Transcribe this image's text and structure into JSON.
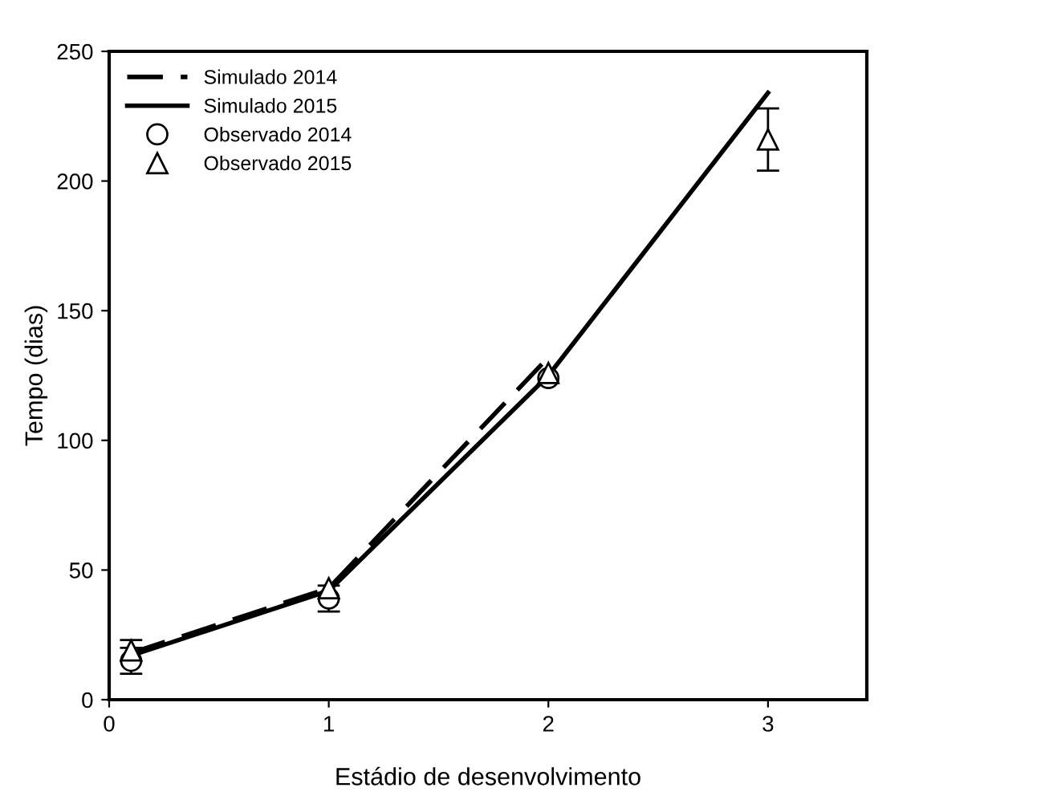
{
  "chart_data": {
    "type": "line",
    "xlabel": "Estádio de desenvolvimento",
    "ylabel": "Tempo (dias)",
    "xlim": [
      0,
      3.45
    ],
    "xticks": [
      0,
      1,
      2,
      3
    ],
    "ylim": [
      0,
      250
    ],
    "yticks": [
      0,
      50,
      100,
      150,
      200,
      250
    ],
    "grid": false,
    "legend": "top left",
    "series": [
      {
        "name": "Simulado 2014",
        "line_style": "dashed",
        "marker": "none",
        "color": "#000000",
        "x": [
          0.1,
          1,
          2
        ],
        "values": [
          18,
          43,
          132
        ]
      },
      {
        "name": "Simulado 2015",
        "line_style": "solid",
        "marker": "none",
        "color": "#000000",
        "x": [
          0.1,
          1,
          2,
          3
        ],
        "values": [
          17,
          42,
          125,
          234
        ]
      },
      {
        "name": "Observado 2014",
        "type": "scatter",
        "marker": "circle",
        "color": "#000000",
        "x": [
          0.1,
          1,
          2
        ],
        "values": [
          15,
          39,
          124
        ],
        "errors": [
          5,
          5,
          null
        ]
      },
      {
        "name": "Observado 2015",
        "type": "scatter",
        "marker": "triangle",
        "color": "#000000",
        "x": [
          0.1,
          1,
          2,
          3
        ],
        "values": [
          19,
          43,
          126,
          216
        ],
        "errors": [
          4,
          null,
          null,
          12
        ]
      }
    ]
  }
}
